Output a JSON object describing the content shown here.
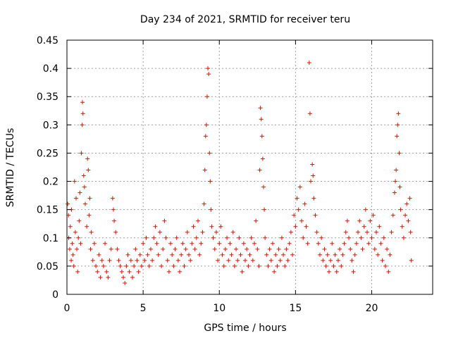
{
  "chart_data": {
    "type": "scatter",
    "title": "Day 234 of 2021, SRMTID for receiver teru",
    "xlabel": "GPS time / hours",
    "ylabel": "SRMTID / TECUs",
    "xlim": [
      0,
      24
    ],
    "ylim": [
      0,
      0.45
    ],
    "xticks": [
      0,
      5,
      10,
      15,
      20
    ],
    "xtick_labels": [
      "0",
      "5",
      "10",
      "15",
      "20"
    ],
    "yticks": [
      0,
      0.05,
      0.1,
      0.15,
      0.2,
      0.25,
      0.3,
      0.35,
      0.4,
      0.45
    ],
    "ytick_labels": [
      "0",
      "0.05",
      "0.1",
      "0.15",
      "0.2",
      "0.25",
      "0.3",
      "0.35",
      "0.4",
      "0.45"
    ],
    "grid": true,
    "marker": "+",
    "color": "#ff0000",
    "series": [
      {
        "name": "SRMTID",
        "points": [
          [
            0.05,
            0.16
          ],
          [
            0.1,
            0.14
          ],
          [
            0.12,
            0.1
          ],
          [
            0.18,
            0.08
          ],
          [
            0.22,
            0.12
          ],
          [
            0.28,
            0.06
          ],
          [
            0.3,
            0.15
          ],
          [
            0.35,
            0.09
          ],
          [
            0.4,
            0.07
          ],
          [
            0.45,
            0.05
          ],
          [
            0.5,
            0.2
          ],
          [
            0.55,
            0.11
          ],
          [
            0.6,
            0.17
          ],
          [
            0.65,
            0.08
          ],
          [
            0.7,
            0.04
          ],
          [
            0.75,
            0.1
          ],
          [
            0.8,
            0.13
          ],
          [
            0.85,
            0.18
          ],
          [
            0.9,
            0.09
          ],
          [
            0.95,
            0.25
          ],
          [
            1.0,
            0.3
          ],
          [
            1.02,
            0.34
          ],
          [
            1.05,
            0.32
          ],
          [
            1.1,
            0.21
          ],
          [
            1.15,
            0.19
          ],
          [
            1.2,
            0.16
          ],
          [
            1.3,
            0.12
          ],
          [
            1.35,
            0.24
          ],
          [
            1.4,
            0.22
          ],
          [
            1.45,
            0.14
          ],
          [
            1.5,
            0.17
          ],
          [
            1.55,
            0.08
          ],
          [
            1.6,
            0.11
          ],
          [
            1.7,
            0.06
          ],
          [
            1.8,
            0.09
          ],
          [
            1.9,
            0.05
          ],
          [
            2.0,
            0.04
          ],
          [
            2.1,
            0.07
          ],
          [
            2.2,
            0.03
          ],
          [
            2.3,
            0.06
          ],
          [
            2.4,
            0.05
          ],
          [
            2.5,
            0.09
          ],
          [
            2.6,
            0.04
          ],
          [
            2.7,
            0.03
          ],
          [
            2.8,
            0.06
          ],
          [
            2.9,
            0.08
          ],
          [
            3.0,
            0.17
          ],
          [
            3.05,
            0.15
          ],
          [
            3.1,
            0.13
          ],
          [
            3.2,
            0.11
          ],
          [
            3.3,
            0.08
          ],
          [
            3.4,
            0.06
          ],
          [
            3.5,
            0.05
          ],
          [
            3.6,
            0.04
          ],
          [
            3.7,
            0.03
          ],
          [
            3.8,
            0.02
          ],
          [
            3.9,
            0.05
          ],
          [
            4.0,
            0.07
          ],
          [
            4.1,
            0.04
          ],
          [
            4.2,
            0.06
          ],
          [
            4.3,
            0.03
          ],
          [
            4.4,
            0.05
          ],
          [
            4.5,
            0.08
          ],
          [
            4.6,
            0.06
          ],
          [
            4.7,
            0.04
          ],
          [
            4.8,
            0.07
          ],
          [
            4.9,
            0.05
          ],
          [
            5.0,
            0.09
          ],
          [
            5.1,
            0.06
          ],
          [
            5.2,
            0.1
          ],
          [
            5.3,
            0.07
          ],
          [
            5.4,
            0.05
          ],
          [
            5.5,
            0.08
          ],
          [
            5.6,
            0.06
          ],
          [
            5.7,
            0.1
          ],
          [
            5.8,
            0.12
          ],
          [
            5.9,
            0.09
          ],
          [
            6.0,
            0.07
          ],
          [
            6.1,
            0.11
          ],
          [
            6.2,
            0.05
          ],
          [
            6.3,
            0.08
          ],
          [
            6.4,
            0.13
          ],
          [
            6.5,
            0.1
          ],
          [
            6.6,
            0.06
          ],
          [
            6.7,
            0.04
          ],
          [
            6.8,
            0.09
          ],
          [
            6.9,
            0.07
          ],
          [
            7.0,
            0.05
          ],
          [
            7.1,
            0.08
          ],
          [
            7.2,
            0.1
          ],
          [
            7.3,
            0.06
          ],
          [
            7.4,
            0.04
          ],
          [
            7.5,
            0.07
          ],
          [
            7.6,
            0.09
          ],
          [
            7.7,
            0.05
          ],
          [
            7.8,
            0.08
          ],
          [
            7.9,
            0.11
          ],
          [
            8.0,
            0.07
          ],
          [
            8.1,
            0.06
          ],
          [
            8.2,
            0.09
          ],
          [
            8.3,
            0.12
          ],
          [
            8.4,
            0.08
          ],
          [
            8.5,
            0.1
          ],
          [
            8.6,
            0.13
          ],
          [
            8.7,
            0.07
          ],
          [
            8.8,
            0.09
          ],
          [
            8.9,
            0.11
          ],
          [
            9.0,
            0.16
          ],
          [
            9.05,
            0.22
          ],
          [
            9.1,
            0.28
          ],
          [
            9.15,
            0.3
          ],
          [
            9.2,
            0.35
          ],
          [
            9.25,
            0.4
          ],
          [
            9.3,
            0.39
          ],
          [
            9.35,
            0.25
          ],
          [
            9.4,
            0.2
          ],
          [
            9.45,
            0.15
          ],
          [
            9.5,
            0.12
          ],
          [
            9.6,
            0.1
          ],
          [
            9.7,
            0.08
          ],
          [
            9.8,
            0.11
          ],
          [
            9.9,
            0.06
          ],
          [
            10.0,
            0.09
          ],
          [
            10.1,
            0.12
          ],
          [
            10.2,
            0.07
          ],
          [
            10.3,
            0.05
          ],
          [
            10.4,
            0.08
          ],
          [
            10.5,
            0.1
          ],
          [
            10.6,
            0.06
          ],
          [
            10.7,
            0.09
          ],
          [
            10.8,
            0.07
          ],
          [
            10.9,
            0.11
          ],
          [
            11.0,
            0.05
          ],
          [
            11.1,
            0.08
          ],
          [
            11.2,
            0.06
          ],
          [
            11.3,
            0.1
          ],
          [
            11.4,
            0.07
          ],
          [
            11.5,
            0.04
          ],
          [
            11.6,
            0.09
          ],
          [
            11.7,
            0.06
          ],
          [
            11.8,
            0.08
          ],
          [
            11.9,
            0.05
          ],
          [
            12.0,
            0.07
          ],
          [
            12.1,
            0.1
          ],
          [
            12.2,
            0.06
          ],
          [
            12.3,
            0.09
          ],
          [
            12.4,
            0.13
          ],
          [
            12.5,
            0.08
          ],
          [
            12.6,
            0.05
          ],
          [
            12.65,
            0.22
          ],
          [
            12.7,
            0.33
          ],
          [
            12.75,
            0.31
          ],
          [
            12.8,
            0.28
          ],
          [
            12.85,
            0.24
          ],
          [
            12.9,
            0.19
          ],
          [
            12.95,
            0.15
          ],
          [
            13.0,
            0.1
          ],
          [
            13.1,
            0.07
          ],
          [
            13.2,
            0.05
          ],
          [
            13.3,
            0.08
          ],
          [
            13.4,
            0.06
          ],
          [
            13.5,
            0.09
          ],
          [
            13.6,
            0.04
          ],
          [
            13.7,
            0.07
          ],
          [
            13.8,
            0.05
          ],
          [
            13.9,
            0.08
          ],
          [
            14.0,
            0.06
          ],
          [
            14.1,
            0.1
          ],
          [
            14.2,
            0.07
          ],
          [
            14.3,
            0.05
          ],
          [
            14.4,
            0.08
          ],
          [
            14.5,
            0.06
          ],
          [
            14.6,
            0.09
          ],
          [
            14.7,
            0.11
          ],
          [
            14.8,
            0.07
          ],
          [
            14.9,
            0.14
          ],
          [
            15.0,
            0.12
          ],
          [
            15.1,
            0.17
          ],
          [
            15.2,
            0.15
          ],
          [
            15.3,
            0.19
          ],
          [
            15.4,
            0.13
          ],
          [
            15.5,
            0.1
          ],
          [
            15.6,
            0.16
          ],
          [
            15.7,
            0.12
          ],
          [
            15.8,
            0.09
          ],
          [
            15.9,
            0.41
          ],
          [
            15.95,
            0.32
          ],
          [
            16.0,
            0.2
          ],
          [
            16.1,
            0.23
          ],
          [
            16.15,
            0.21
          ],
          [
            16.2,
            0.17
          ],
          [
            16.3,
            0.14
          ],
          [
            16.4,
            0.11
          ],
          [
            16.5,
            0.09
          ],
          [
            16.6,
            0.07
          ],
          [
            16.7,
            0.1
          ],
          [
            16.8,
            0.06
          ],
          [
            16.9,
            0.08
          ],
          [
            17.0,
            0.05
          ],
          [
            17.1,
            0.07
          ],
          [
            17.2,
            0.04
          ],
          [
            17.3,
            0.06
          ],
          [
            17.4,
            0.09
          ],
          [
            17.5,
            0.05
          ],
          [
            17.6,
            0.07
          ],
          [
            17.7,
            0.04
          ],
          [
            17.8,
            0.06
          ],
          [
            17.9,
            0.08
          ],
          [
            18.0,
            0.05
          ],
          [
            18.1,
            0.07
          ],
          [
            18.2,
            0.09
          ],
          [
            18.3,
            0.11
          ],
          [
            18.4,
            0.13
          ],
          [
            18.5,
            0.1
          ],
          [
            18.6,
            0.08
          ],
          [
            18.7,
            0.06
          ],
          [
            18.8,
            0.04
          ],
          [
            18.9,
            0.07
          ],
          [
            19.0,
            0.09
          ],
          [
            19.1,
            0.11
          ],
          [
            19.2,
            0.13
          ],
          [
            19.3,
            0.1
          ],
          [
            19.4,
            0.08
          ],
          [
            19.5,
            0.12
          ],
          [
            19.6,
            0.15
          ],
          [
            19.7,
            0.11
          ],
          [
            19.8,
            0.09
          ],
          [
            19.9,
            0.13
          ],
          [
            20.0,
            0.1
          ],
          [
            20.1,
            0.14
          ],
          [
            20.2,
            0.08
          ],
          [
            20.3,
            0.11
          ],
          [
            20.4,
            0.07
          ],
          [
            20.5,
            0.12
          ],
          [
            20.6,
            0.09
          ],
          [
            20.7,
            0.06
          ],
          [
            20.8,
            0.1
          ],
          [
            20.9,
            0.05
          ],
          [
            21.0,
            0.08
          ],
          [
            21.1,
            0.04
          ],
          [
            21.2,
            0.07
          ],
          [
            21.3,
            0.11
          ],
          [
            21.4,
            0.14
          ],
          [
            21.5,
            0.18
          ],
          [
            21.55,
            0.2
          ],
          [
            21.6,
            0.22
          ],
          [
            21.65,
            0.28
          ],
          [
            21.7,
            0.3
          ],
          [
            21.75,
            0.32
          ],
          [
            21.8,
            0.25
          ],
          [
            21.85,
            0.19
          ],
          [
            21.9,
            0.15
          ],
          [
            22.0,
            0.12
          ],
          [
            22.1,
            0.1
          ],
          [
            22.2,
            0.14
          ],
          [
            22.3,
            0.16
          ],
          [
            22.4,
            0.13
          ],
          [
            22.5,
            0.17
          ],
          [
            22.55,
            0.11
          ],
          [
            22.6,
            0.06
          ]
        ]
      }
    ]
  }
}
